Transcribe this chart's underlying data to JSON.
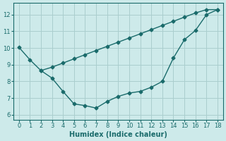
{
  "line1_x": [
    0,
    1,
    2,
    3,
    4,
    5,
    6,
    7,
    8,
    9,
    10,
    11,
    12,
    13,
    14,
    15,
    16,
    17,
    18
  ],
  "line1_y": [
    10.05,
    9.3,
    8.65,
    8.85,
    9.1,
    9.35,
    9.6,
    9.85,
    10.1,
    10.35,
    10.6,
    10.85,
    11.1,
    11.35,
    11.6,
    11.85,
    12.1,
    12.3,
    12.3
  ],
  "line2_x": [
    2,
    3,
    4,
    5,
    6,
    7,
    8,
    9,
    10,
    11,
    12,
    13,
    14,
    15,
    16,
    17,
    18
  ],
  "line2_y": [
    8.65,
    8.2,
    7.4,
    6.65,
    6.55,
    6.4,
    6.8,
    7.1,
    7.3,
    7.4,
    7.65,
    8.0,
    9.4,
    10.5,
    11.05,
    12.0,
    12.3
  ],
  "color": "#1a6b6b",
  "bg_color": "#cdeaea",
  "grid_color": "#aacece",
  "xlabel": "Humidex (Indice chaleur)",
  "xlim": [
    -0.5,
    18.5
  ],
  "ylim": [
    5.7,
    12.7
  ],
  "xticks": [
    0,
    1,
    2,
    3,
    4,
    5,
    6,
    7,
    8,
    9,
    10,
    11,
    12,
    13,
    14,
    15,
    16,
    17,
    18
  ],
  "yticks": [
    6,
    7,
    8,
    9,
    10,
    11,
    12
  ],
  "marker": "D",
  "markersize": 2.5
}
